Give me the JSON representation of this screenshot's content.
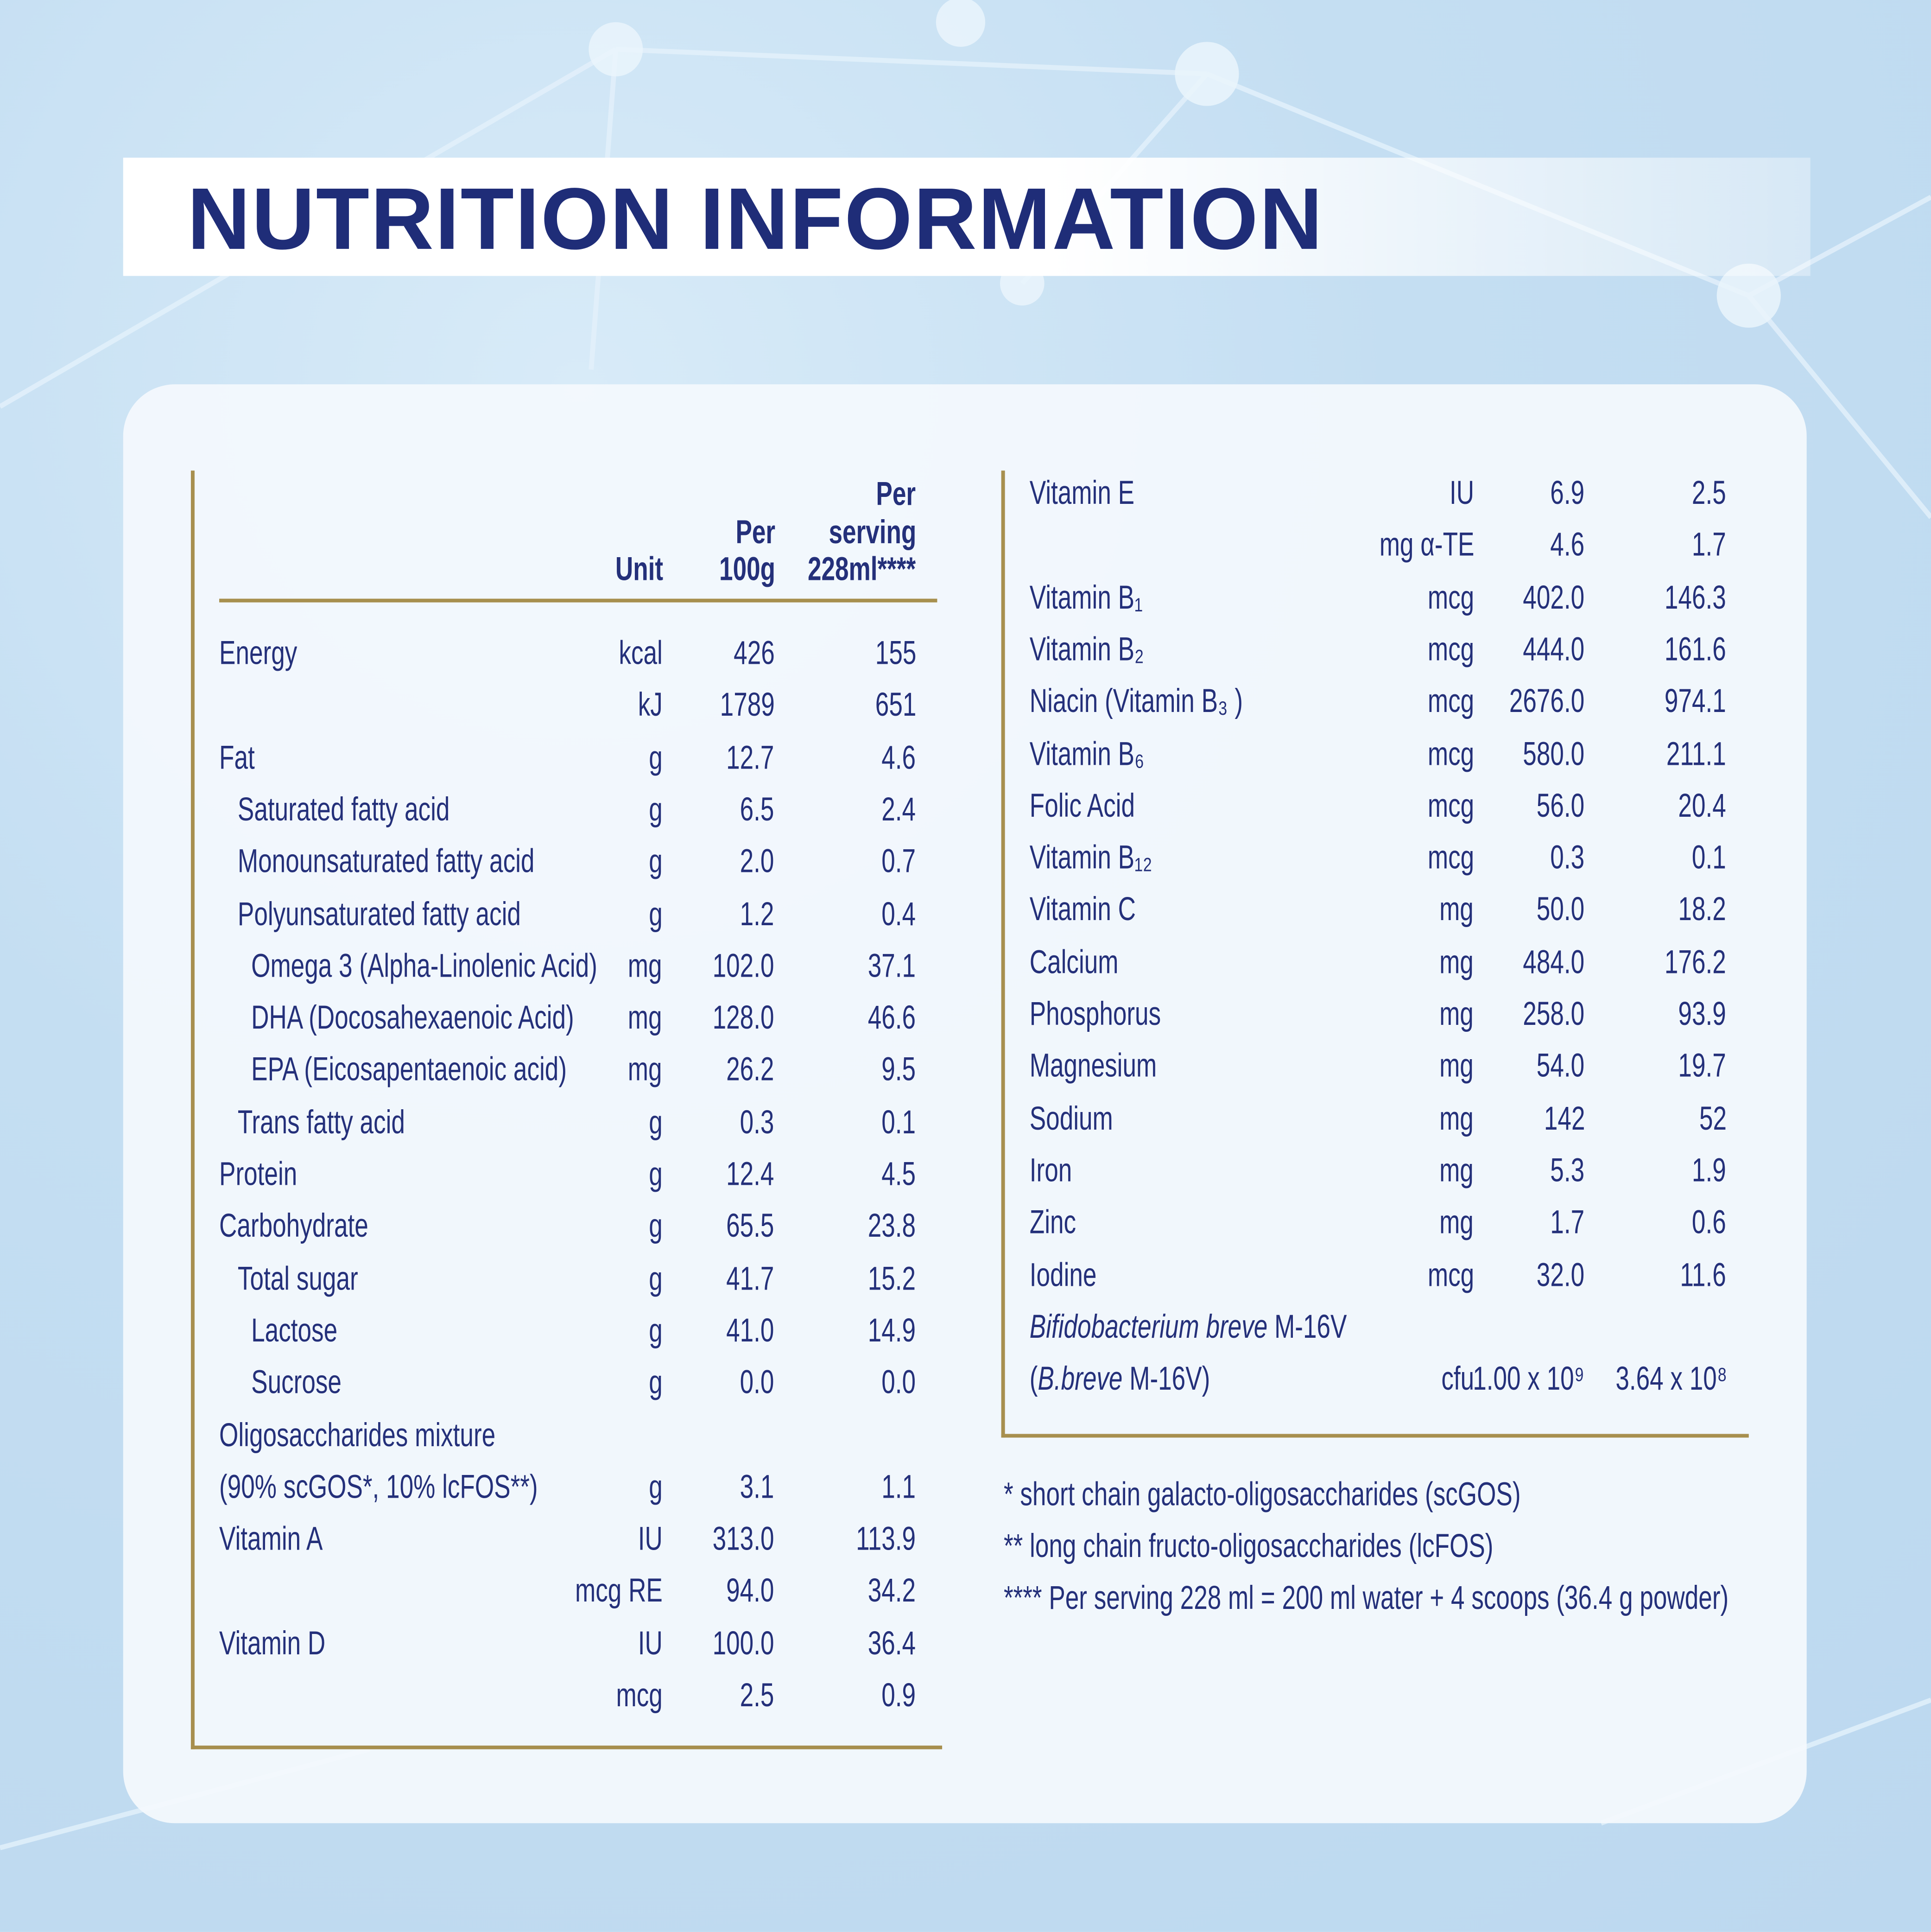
{
  "title": "NUTRITION INFORMATION",
  "colors": {
    "navy": "#1f2d78",
    "gold": "#a78f4e",
    "background": "#c4def2"
  },
  "left_table": {
    "headers": {
      "unit": "Unit",
      "per100_line1": "Per",
      "per100_line2": "100g",
      "serving_line1": "Per",
      "serving_line2": "serving",
      "serving_line3": "228ml****"
    },
    "rows": [
      {
        "label": "Energy",
        "indent": 0,
        "unit": "kcal",
        "per100": "426",
        "serving": "155"
      },
      {
        "label": "",
        "indent": 0,
        "unit": "kJ",
        "per100": "1789",
        "serving": "651"
      },
      {
        "label": "Fat",
        "indent": 0,
        "unit": "g",
        "per100": "12.7",
        "serving": "4.6"
      },
      {
        "label": "Saturated fatty acid",
        "indent": 1,
        "unit": "g",
        "per100": "6.5",
        "serving": "2.4"
      },
      {
        "label": "Monounsaturated fatty acid",
        "indent": 1,
        "unit": "g",
        "per100": "2.0",
        "serving": "0.7"
      },
      {
        "label": "Polyunsaturated fatty acid",
        "indent": 1,
        "unit": "g",
        "per100": "1.2",
        "serving": "0.4"
      },
      {
        "label": "Omega 3 (Alpha-Linolenic Acid)",
        "indent": 2,
        "unit": "mg",
        "per100": "102.0",
        "serving": "37.1"
      },
      {
        "label": "DHA (Docosahexaenoic Acid)",
        "indent": 2,
        "unit": "mg",
        "per100": "128.0",
        "serving": "46.6"
      },
      {
        "label": "EPA (Eicosapentaenoic acid)",
        "indent": 2,
        "unit": "mg",
        "per100": "26.2",
        "serving": "9.5"
      },
      {
        "label": "Trans fatty acid",
        "indent": 1,
        "unit": "g",
        "per100": "0.3",
        "serving": "0.1"
      },
      {
        "label": "Protein",
        "indent": 0,
        "unit": "g",
        "per100": "12.4",
        "serving": "4.5"
      },
      {
        "label": "Carbohydrate",
        "indent": 0,
        "unit": "g",
        "per100": "65.5",
        "serving": "23.8"
      },
      {
        "label": "Total sugar",
        "indent": 1,
        "unit": "g",
        "per100": "41.7",
        "serving": "15.2"
      },
      {
        "label": "Lactose",
        "indent": 2,
        "unit": "g",
        "per100": "41.0",
        "serving": "14.9"
      },
      {
        "label": "Sucrose",
        "indent": 2,
        "unit": "g",
        "per100": "0.0",
        "serving": "0.0"
      },
      {
        "label": "Oligosaccharides mixture",
        "indent": 0,
        "unit": "",
        "per100": "",
        "serving": ""
      },
      {
        "label": "(90% scGOS*, 10% lcFOS**)",
        "indent": 0,
        "unit": "g",
        "per100": "3.1",
        "serving": "1.1"
      },
      {
        "label": "Vitamin A",
        "indent": 0,
        "unit": "IU",
        "per100": "313.0",
        "serving": "113.9"
      },
      {
        "label": "",
        "indent": 0,
        "unit": "mcg RE",
        "per100": "94.0",
        "serving": "34.2"
      },
      {
        "label": "Vitamin D",
        "indent": 0,
        "unit": "IU",
        "per100": "100.0",
        "serving": "36.4"
      },
      {
        "label": "",
        "indent": 0,
        "unit": "mcg",
        "per100": "2.5",
        "serving": "0.9"
      }
    ]
  },
  "right_table": {
    "rows": [
      {
        "label": "Vitamin E",
        "unit": "IU",
        "per100": "6.9",
        "serving": "2.5"
      },
      {
        "label": "",
        "unit": "mg α-TE",
        "per100": "4.6",
        "serving": "1.7"
      },
      {
        "label": "Vitamin B₁",
        "unit": "mcg",
        "per100": "402.0",
        "serving": "146.3"
      },
      {
        "label": "Vitamin B₂",
        "unit": "mcg",
        "per100": "444.0",
        "serving": "161.6"
      },
      {
        "label": "Niacin (Vitamin B₃ )",
        "unit": "mcg",
        "per100": "2676.0",
        "serving": "974.1"
      },
      {
        "label": "Vitamin B₆",
        "unit": "mcg",
        "per100": "580.0",
        "serving": "211.1"
      },
      {
        "label": "Folic Acid",
        "unit": "mcg",
        "per100": "56.0",
        "serving": "20.4"
      },
      {
        "label": "Vitamin B₁₂",
        "unit": "mcg",
        "per100": "0.3",
        "serving": "0.1"
      },
      {
        "label": "Vitamin C",
        "unit": "mg",
        "per100": "50.0",
        "serving": "18.2"
      },
      {
        "label": "Calcium",
        "unit": "mg",
        "per100": "484.0",
        "serving": "176.2"
      },
      {
        "label": "Phosphorus",
        "unit": "mg",
        "per100": "258.0",
        "serving": "93.9"
      },
      {
        "label": "Magnesium",
        "unit": "mg",
        "per100": "54.0",
        "serving": "19.7"
      },
      {
        "label": "Sodium",
        "unit": "mg",
        "per100": "142",
        "serving": "52"
      },
      {
        "label": "Iron",
        "unit": "mg",
        "per100": "5.3",
        "serving": "1.9"
      },
      {
        "label": "Zinc",
        "unit": "mg",
        "per100": "1.7",
        "serving": "0.6"
      },
      {
        "label": "Iodine",
        "unit": "mcg",
        "per100": "32.0",
        "serving": "11.6"
      },
      {
        "label_italic": "Bifidobacterium breve",
        "label_rest": " M-16V",
        "unit": "",
        "per100": "",
        "serving": ""
      },
      {
        "label_prefix": "(",
        "label_italic": "B.breve",
        "label_rest": " M-16V)",
        "unit": "cfu",
        "per100": "1.00 x 10⁹",
        "serving": "3.64 x 10⁸"
      }
    ]
  },
  "footnotes": [
    "* short chain galacto-oligosaccharides (scGOS)",
    "** long chain fructo-oligosaccharides (lcFOS)",
    "**** Per serving 228 ml = 200 ml water + 4 scoops (36.4 g powder)"
  ]
}
